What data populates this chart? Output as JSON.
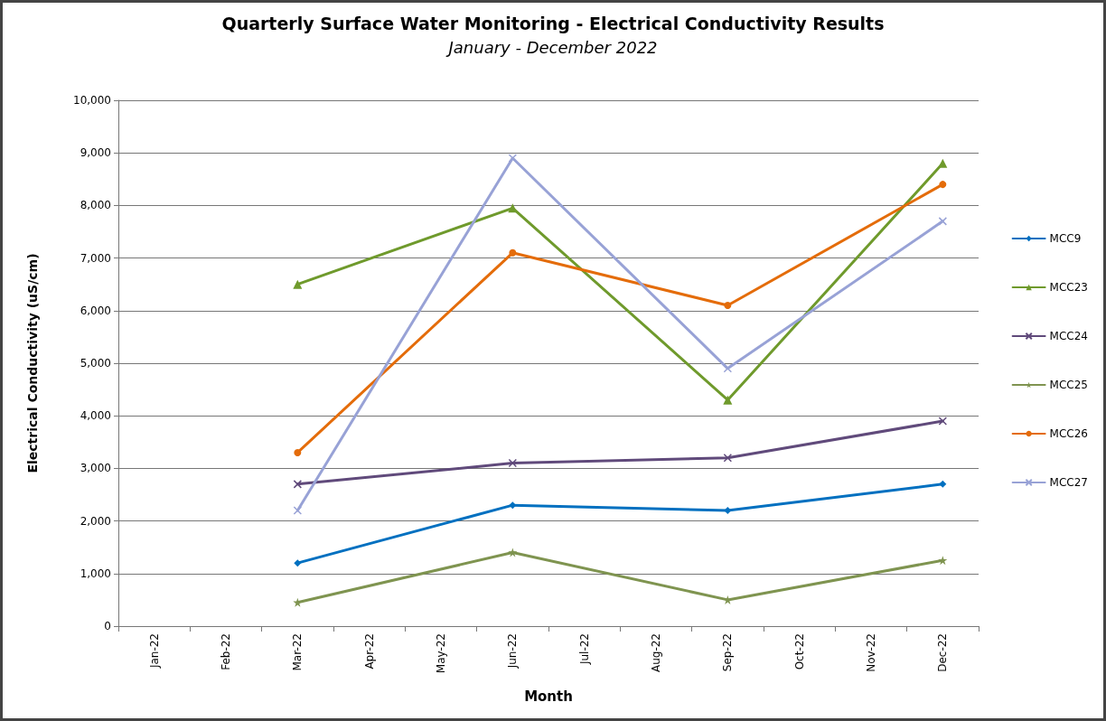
{
  "chart_data": {
    "type": "line",
    "title": "Quarterly Surface Water Monitoring - Electrical Conductivity Results",
    "subtitle": "January - December 2022",
    "xlabel": "Month",
    "ylabel": "Electrical Conductivity (uS/cm)",
    "categories": [
      "Jan-22",
      "Feb-22",
      "Mar-22",
      "Apr-22",
      "May-22",
      "Jun-22",
      "Jul-22",
      "Aug-22",
      "Sep-22",
      "Oct-22",
      "Nov-22",
      "Dec-22"
    ],
    "series": [
      {
        "name": "MCC9",
        "color": "#0070c0",
        "marker": "diamond",
        "x": [
          "Mar-22",
          "Jun-22",
          "Sep-22",
          "Dec-22"
        ],
        "values": [
          1200,
          2300,
          2200,
          2700
        ]
      },
      {
        "name": "MCC23",
        "color": "#6f9a2c",
        "marker": "triangle",
        "x": [
          "Mar-22",
          "Jun-22",
          "Sep-22",
          "Dec-22"
        ],
        "values": [
          6500,
          7950,
          4300,
          8800
        ]
      },
      {
        "name": "MCC24",
        "color": "#604a7b",
        "marker": "cross",
        "x": [
          "Mar-22",
          "Jun-22",
          "Sep-22",
          "Dec-22"
        ],
        "values": [
          2700,
          3100,
          3200,
          3900
        ]
      },
      {
        "name": "MCC25",
        "color": "#7f9450",
        "marker": "star",
        "x": [
          "Mar-22",
          "Jun-22",
          "Sep-22",
          "Dec-22"
        ],
        "values": [
          450,
          1400,
          500,
          1250
        ]
      },
      {
        "name": "MCC26",
        "color": "#e46c0a",
        "marker": "circle",
        "x": [
          "Mar-22",
          "Jun-22",
          "Sep-22",
          "Dec-22"
        ],
        "values": [
          3300,
          7100,
          6100,
          8400
        ]
      },
      {
        "name": "MCC27",
        "color": "#98a2d6",
        "marker": "cross",
        "x": [
          "Mar-22",
          "Jun-22",
          "Sep-22",
          "Dec-22"
        ],
        "values": [
          2200,
          8900,
          4900,
          7700
        ]
      }
    ],
    "ylim": [
      0,
      10000
    ],
    "yticks": [
      {
        "value": 0,
        "label": "0"
      },
      {
        "value": 1000,
        "label": "1,000"
      },
      {
        "value": 2000,
        "label": "2,000"
      },
      {
        "value": 3000,
        "label": "3,000"
      },
      {
        "value": 4000,
        "label": "4,000"
      },
      {
        "value": 5000,
        "label": "5,000"
      },
      {
        "value": 6000,
        "label": "6,000"
      },
      {
        "value": 7000,
        "label": "7,000"
      },
      {
        "value": 8000,
        "label": "8,000"
      },
      {
        "value": 9000,
        "label": "9,000"
      },
      {
        "value": 10000,
        "label": "10,000"
      }
    ],
    "grid": "y",
    "legend": "right",
    "line_style": "solid"
  }
}
